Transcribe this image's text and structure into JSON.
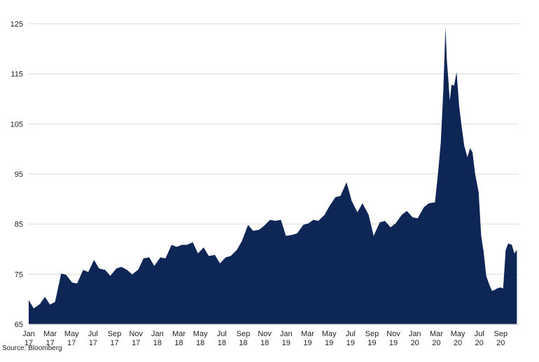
{
  "chart_data": {
    "type": "area",
    "title": "",
    "xlabel": "",
    "ylabel": "",
    "ylim": [
      65,
      125
    ],
    "yticks": [
      65,
      75,
      85,
      95,
      105,
      115,
      125
    ],
    "grid": "horizontal",
    "legend": "none",
    "fill_color": "#0e2656",
    "x_tick_labels": [
      {
        "line1": "Jan",
        "line2": "17"
      },
      {
        "line1": "Mar",
        "line2": "17"
      },
      {
        "line1": "May",
        "line2": "17"
      },
      {
        "line1": "Jul",
        "line2": "17"
      },
      {
        "line1": "Sep",
        "line2": "17"
      },
      {
        "line1": "Nov",
        "line2": "17"
      },
      {
        "line1": "Jan",
        "line2": "18"
      },
      {
        "line1": "Mar",
        "line2": "18"
      },
      {
        "line1": "May",
        "line2": "18"
      },
      {
        "line1": "Jul",
        "line2": "18"
      },
      {
        "line1": "Sep",
        "line2": "18"
      },
      {
        "line1": "Nov",
        "line2": "18"
      },
      {
        "line1": "Jan",
        "line2": "19"
      },
      {
        "line1": "Mar",
        "line2": "19"
      },
      {
        "line1": "May",
        "line2": "19"
      },
      {
        "line1": "Jul",
        "line2": "19"
      },
      {
        "line1": "Sep",
        "line2": "19"
      },
      {
        "line1": "Nov",
        "line2": "19"
      },
      {
        "line1": "Jan",
        "line2": "20"
      },
      {
        "line1": "Mar",
        "line2": "20"
      },
      {
        "line1": "May",
        "line2": "20"
      },
      {
        "line1": "Jul",
        "line2": "20"
      },
      {
        "line1": "Sep",
        "line2": "20"
      }
    ],
    "series": [
      {
        "x": [
          "2017-01-01",
          "2017-01-15",
          "2017-02-01",
          "2017-02-15",
          "2017-03-01",
          "2017-03-15",
          "2017-04-01",
          "2017-04-15",
          "2017-05-01",
          "2017-05-15",
          "2017-06-01",
          "2017-06-15",
          "2017-07-01",
          "2017-07-15",
          "2017-08-01",
          "2017-08-15",
          "2017-09-01",
          "2017-09-15",
          "2017-10-01",
          "2017-10-15",
          "2017-11-01",
          "2017-11-15",
          "2017-12-01",
          "2017-12-15",
          "2018-01-01",
          "2018-01-15",
          "2018-02-01",
          "2018-02-15",
          "2018-03-01",
          "2018-03-15",
          "2018-04-01",
          "2018-04-15",
          "2018-05-01",
          "2018-05-15",
          "2018-06-01",
          "2018-06-15",
          "2018-07-01",
          "2018-07-15",
          "2018-08-01",
          "2018-08-15",
          "2018-09-01",
          "2018-09-15",
          "2018-10-01",
          "2018-10-15",
          "2018-11-01",
          "2018-11-15",
          "2018-12-01",
          "2018-12-15",
          "2019-01-01",
          "2019-01-15",
          "2019-02-01",
          "2019-02-15",
          "2019-03-01",
          "2019-03-15",
          "2019-04-01",
          "2019-04-15",
          "2019-05-01",
          "2019-05-15",
          "2019-06-01",
          "2019-06-15",
          "2019-07-01",
          "2019-07-15",
          "2019-08-01",
          "2019-08-15",
          "2019-09-01",
          "2019-09-15",
          "2019-10-01",
          "2019-10-15",
          "2019-11-01",
          "2019-11-15",
          "2019-12-01",
          "2019-12-15",
          "2020-01-01",
          "2020-01-15",
          "2020-02-01",
          "2020-02-10",
          "2020-02-17",
          "2020-02-24",
          "2020-03-01",
          "2020-03-05",
          "2020-03-09",
          "2020-03-13",
          "2020-03-18",
          "2020-03-25",
          "2020-04-01",
          "2020-04-08",
          "2020-04-15",
          "2020-04-22",
          "2020-05-01",
          "2020-05-08",
          "2020-05-15",
          "2020-05-22",
          "2020-06-01",
          "2020-06-08",
          "2020-06-15",
          "2020-06-22",
          "2020-07-01",
          "2020-07-08",
          "2020-07-15",
          "2020-07-22",
          "2020-08-01",
          "2020-08-08",
          "2020-08-15",
          "2020-08-22",
          "2020-09-01",
          "2020-09-08",
          "2020-09-15"
        ],
        "values": [
          69.5,
          68.5,
          68.7,
          70.8,
          68.6,
          69.8,
          74.8,
          75.2,
          73.0,
          73.5,
          75.5,
          75.8,
          77.5,
          76.5,
          75.5,
          75.0,
          75.8,
          76.8,
          75.5,
          75.3,
          75.6,
          78.5,
          78.0,
          77.0,
          78.0,
          78.5,
          80.5,
          80.8,
          80.5,
          81.2,
          81.0,
          79.5,
          80.0,
          79.0,
          78.5,
          77.5,
          78.0,
          79.0,
          79.5,
          82.0,
          84.5,
          84.0,
          83.5,
          85.0,
          85.5,
          86.0,
          85.5,
          83.0,
          82.5,
          83.5,
          84.5,
          85.5,
          85.5,
          86.0,
          86.5,
          89.0,
          90.0,
          91.0,
          93.0,
          90.0,
          87.0,
          89.5,
          86.5,
          83.0,
          85.0,
          86.0,
          84.0,
          85.5,
          86.5,
          88.0,
          86.0,
          86.5,
          88.0,
          89.5,
          89.0,
          96.0,
          101.0,
          112.0,
          124.0,
          118.0,
          113.5,
          110.0,
          112.5,
          113.0,
          115.0,
          109.0,
          104.0,
          101.0,
          98.0,
          100.5,
          99.0,
          95.5,
          91.0,
          83.0,
          79.0,
          75.0,
          72.5,
          72.0,
          71.5,
          72.5,
          72.0,
          72.5,
          79.5,
          81.5,
          80.5,
          79.5,
          79.5
        ]
      }
    ]
  },
  "source_note": "Source: Bloomberg"
}
